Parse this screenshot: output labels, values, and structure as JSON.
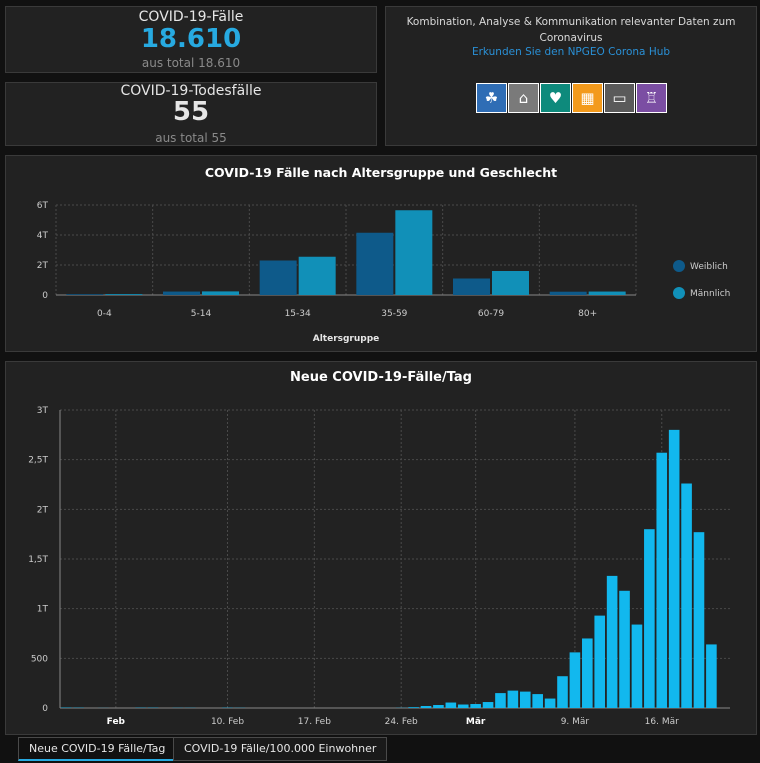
{
  "kpi_cases": {
    "title": "COVID-19-Fälle",
    "value": "18.610",
    "subtitle": "aus total 18.610",
    "value_color": "#27aae1"
  },
  "kpi_deaths": {
    "title": "COVID-19-Todesfälle",
    "value": "55",
    "subtitle": "aus total 55",
    "value_color": "#e6e6e6"
  },
  "info": {
    "text": "Kombination, Analyse & Kommunikation relevanter Daten zum Coronavirus",
    "link": "Erkunden Sie den NPGEO Corona Hub",
    "icons": [
      {
        "name": "hands-plant-icon",
        "color": "#2f6db5",
        "glyph": "☘"
      },
      {
        "name": "location-pin-icon",
        "color": "#7a7a7a",
        "glyph": "⌂"
      },
      {
        "name": "heart-pulse-icon",
        "color": "#0e8a7c",
        "glyph": "♥"
      },
      {
        "name": "building-map-icon",
        "color": "#f39a1c",
        "glyph": "▦"
      },
      {
        "name": "car-icon",
        "color": "#5a5a5a",
        "glyph": "▭"
      },
      {
        "name": "monument-icon",
        "color": "#7b4ea3",
        "glyph": "♖"
      }
    ]
  },
  "age_chart": {
    "title": "COVID-19 Fälle nach Altersgruppe und Geschlecht",
    "chart_data": {
      "type": "bar",
      "categories": [
        "0-4",
        "5-14",
        "15-34",
        "35-59",
        "60-79",
        "80+"
      ],
      "series": [
        {
          "name": "Weiblich",
          "color": "#0e5a8a",
          "values": [
            50,
            230,
            2300,
            4150,
            1100,
            220
          ]
        },
        {
          "name": "Männlich",
          "color": "#1190b8",
          "values": [
            60,
            240,
            2550,
            5650,
            1600,
            230
          ]
        }
      ],
      "title": "COVID-19 Fälle nach Altersgruppe und Geschlecht",
      "xlabel": "Altersgruppe",
      "ylabel": "",
      "ylim": [
        0,
        6000
      ],
      "yticks": [
        0,
        2000,
        4000,
        6000
      ],
      "ytick_labels": [
        "0",
        "2T",
        "4T",
        "6T"
      ],
      "grid": true,
      "legend_position": "right"
    }
  },
  "daily_chart": {
    "title": "Neue COVID-19-Fälle/Tag",
    "chart_data": {
      "type": "bar",
      "x": [
        "2020-01-28",
        "2020-01-29",
        "2020-01-30",
        "2020-01-31",
        "2020-02-01",
        "2020-02-02",
        "2020-02-03",
        "2020-02-04",
        "2020-02-05",
        "2020-02-06",
        "2020-02-07",
        "2020-02-08",
        "2020-02-09",
        "2020-02-10",
        "2020-02-11",
        "2020-02-12",
        "2020-02-13",
        "2020-02-14",
        "2020-02-15",
        "2020-02-16",
        "2020-02-17",
        "2020-02-18",
        "2020-02-19",
        "2020-02-20",
        "2020-02-21",
        "2020-02-22",
        "2020-02-23",
        "2020-02-24",
        "2020-02-25",
        "2020-02-26",
        "2020-02-27",
        "2020-02-28",
        "2020-02-29",
        "2020-03-01",
        "2020-03-02",
        "2020-03-03",
        "2020-03-04",
        "2020-03-05",
        "2020-03-06",
        "2020-03-07",
        "2020-03-08",
        "2020-03-09",
        "2020-03-10",
        "2020-03-11",
        "2020-03-12",
        "2020-03-13",
        "2020-03-14",
        "2020-03-15",
        "2020-03-16",
        "2020-03-17",
        "2020-03-18",
        "2020-03-19",
        "2020-03-20",
        "2020-03-21"
      ],
      "values": [
        4,
        3,
        0,
        1,
        0,
        0,
        3,
        3,
        0,
        2,
        2,
        0,
        0,
        3,
        2,
        0,
        0,
        0,
        0,
        0,
        0,
        0,
        0,
        0,
        0,
        0,
        0,
        2,
        8,
        20,
        30,
        55,
        35,
        40,
        60,
        150,
        175,
        165,
        140,
        95,
        320,
        560,
        700,
        930,
        1330,
        1180,
        840,
        1800,
        2570,
        2800,
        2260,
        1770,
        640,
        0
      ],
      "color": "#12b8ee",
      "title": "Neue COVID-19-Fälle/Tag",
      "xlabel": "",
      "ylabel": "",
      "ylim": [
        0,
        3000
      ],
      "yticks": [
        0,
        500,
        1000,
        1500,
        2000,
        2500,
        3000
      ],
      "ytick_labels": [
        "0",
        "500",
        "1T",
        "1,5T",
        "2T",
        "2,5T",
        "3T"
      ],
      "xtick_labels": [
        {
          "label": "Feb",
          "date": "2020-02-01",
          "bold": true
        },
        {
          "label": "10. Feb",
          "date": "2020-02-10",
          "bold": false
        },
        {
          "label": "17. Feb",
          "date": "2020-02-17",
          "bold": false
        },
        {
          "label": "24. Feb",
          "date": "2020-02-24",
          "bold": false
        },
        {
          "label": "Mär",
          "date": "2020-03-01",
          "bold": true
        },
        {
          "label": "9. Mär",
          "date": "2020-03-09",
          "bold": false
        },
        {
          "label": "16. Mär",
          "date": "2020-03-16",
          "bold": false
        }
      ],
      "grid": true
    }
  },
  "tabs": [
    {
      "label": "Neue COVID-19 Fälle/Tag",
      "active": true
    },
    {
      "label": "COVID-19 Fälle/100.000 Einwohner",
      "active": false
    }
  ]
}
